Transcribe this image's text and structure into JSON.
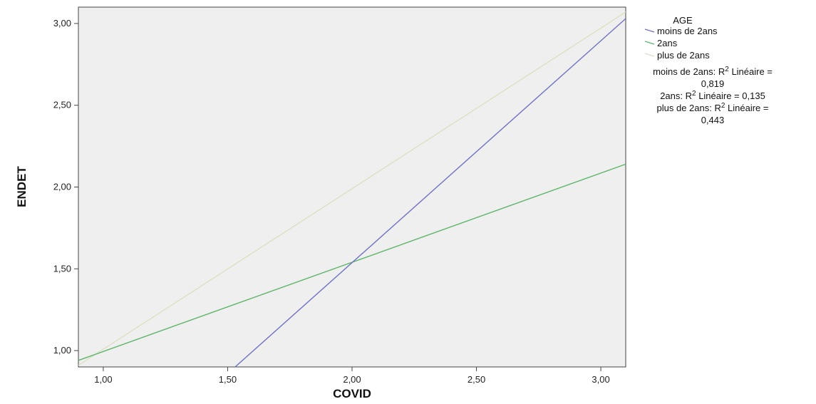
{
  "chart_data": {
    "type": "line",
    "xlabel": "COVID",
    "ylabel": "ENDET",
    "xlim": [
      0.9,
      3.1
    ],
    "ylim": [
      0.9,
      3.1
    ],
    "x_ticks": [
      "1,00",
      "1,50",
      "2,00",
      "2,50",
      "3,00"
    ],
    "x_tick_values": [
      1.0,
      1.5,
      2.0,
      2.5,
      3.0
    ],
    "y_ticks": [
      "1,00",
      "1,50",
      "2,00",
      "2,50",
      "3,00"
    ],
    "y_tick_values": [
      1.0,
      1.5,
      2.0,
      2.5,
      3.0
    ],
    "grid": false,
    "legend": {
      "title": "AGE",
      "position": "right",
      "entries": [
        "moins de 2ans",
        "2ans",
        "plus de 2ans"
      ],
      "r2_lines": [
        [
          "moins de 2ans: R",
          "2",
          " Linéaire =",
          "0,819"
        ],
        [
          "2ans: R",
          "2",
          " Linéaire = 0,135"
        ],
        [
          "plus de 2ans: R",
          "2",
          " Linéaire =",
          "0,443"
        ]
      ]
    },
    "series": [
      {
        "name": "moins de 2ans",
        "color": "#6f72c2",
        "x": [
          1.53,
          3.1
        ],
        "y": [
          0.9,
          3.03
        ]
      },
      {
        "name": "2ans",
        "color": "#5fb56a",
        "x": [
          0.9,
          3.1
        ],
        "y": [
          0.94,
          2.14
        ]
      },
      {
        "name": "plus de 2ans",
        "color": "#dde0c3",
        "x": [
          0.9,
          3.1
        ],
        "y": [
          0.91,
          3.07
        ]
      }
    ],
    "plot_background": "#efefef"
  }
}
